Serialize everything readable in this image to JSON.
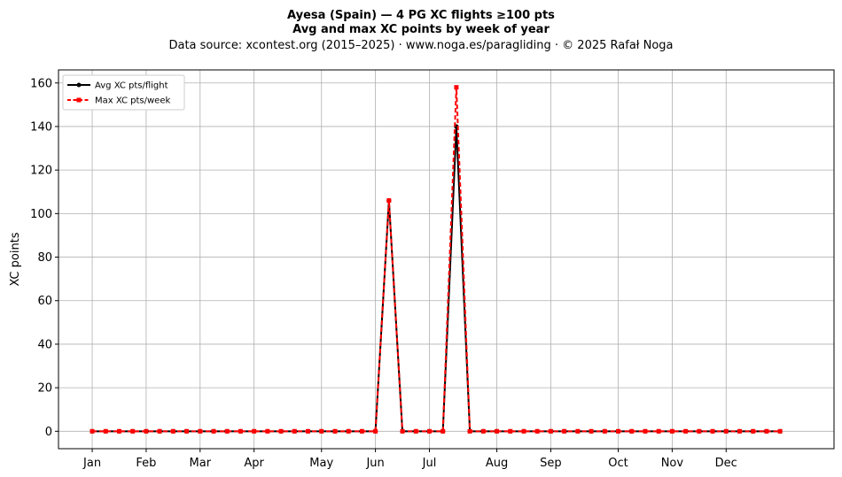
{
  "chart_data": {
    "type": "line",
    "title": "Ayesa (Spain)  —  4 PG XC flights ≥100 pts",
    "subtitle": "Avg and max XC points by week of year",
    "source": "Data source: xcontest.org (2015–2025)  ·  www.noga.es/paragliding  ·  © 2025 Rafał Noga",
    "xlabel": "",
    "ylabel": "XC points",
    "xlim": [
      -2.5,
      55
    ],
    "ylim": [
      -8,
      166
    ],
    "yticks": [
      0,
      20,
      40,
      60,
      80,
      100,
      120,
      140,
      160
    ],
    "month_ticks": [
      {
        "label": "Jan",
        "x": 0
      },
      {
        "label": "Feb",
        "x": 4
      },
      {
        "label": "Mar",
        "x": 8
      },
      {
        "label": "Apr",
        "x": 12
      },
      {
        "label": "May",
        "x": 17
      },
      {
        "label": "Jun",
        "x": 21
      },
      {
        "label": "Jul",
        "x": 25
      },
      {
        "label": "Aug",
        "x": 30
      },
      {
        "label": "Sep",
        "x": 34
      },
      {
        "label": "Oct",
        "x": 39
      },
      {
        "label": "Nov",
        "x": 43
      },
      {
        "label": "Dec",
        "x": 47
      }
    ],
    "grid": true,
    "legend_position": "top-left",
    "x": [
      0,
      1,
      2,
      3,
      4,
      5,
      6,
      7,
      8,
      9,
      10,
      11,
      12,
      13,
      14,
      15,
      16,
      17,
      18,
      19,
      20,
      21,
      22,
      23,
      24,
      25,
      26,
      27,
      28,
      29,
      30,
      31,
      32,
      33,
      34,
      35,
      36,
      37,
      38,
      39,
      40,
      41,
      42,
      43,
      44,
      45,
      46,
      47,
      48,
      49,
      50,
      51
    ],
    "series": [
      {
        "name": "Avg XC pts/flight",
        "color": "#000000",
        "style": "solid",
        "marker": "circle",
        "values": [
          0,
          0,
          0,
          0,
          0,
          0,
          0,
          0,
          0,
          0,
          0,
          0,
          0,
          0,
          0,
          0,
          0,
          0,
          0,
          0,
          0,
          0,
          106,
          0,
          0,
          0,
          0,
          140,
          0,
          0,
          0,
          0,
          0,
          0,
          0,
          0,
          0,
          0,
          0,
          0,
          0,
          0,
          0,
          0,
          0,
          0,
          0,
          0,
          0,
          0,
          0,
          0
        ]
      },
      {
        "name": "Max XC pts/week",
        "color": "#ff0000",
        "style": "dashed",
        "marker": "square",
        "values": [
          0,
          0,
          0,
          0,
          0,
          0,
          0,
          0,
          0,
          0,
          0,
          0,
          0,
          0,
          0,
          0,
          0,
          0,
          0,
          0,
          0,
          0,
          106,
          0,
          0,
          0,
          0,
          158,
          0,
          0,
          0,
          0,
          0,
          0,
          0,
          0,
          0,
          0,
          0,
          0,
          0,
          0,
          0,
          0,
          0,
          0,
          0,
          0,
          0,
          0,
          0,
          0
        ]
      }
    ]
  }
}
